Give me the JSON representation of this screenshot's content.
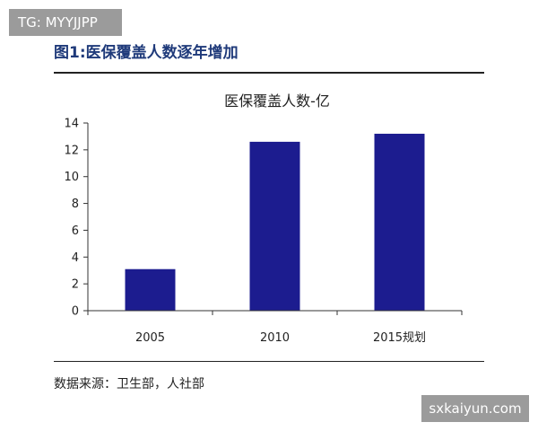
{
  "watermarks": {
    "top_left": "TG: MYYJJPP",
    "bottom_right": "sxkaiyun.com"
  },
  "figure_title": "图1:医保覆盖人数逐年增加",
  "source_note": "数据来源：卫生部，人社部",
  "colors": {
    "bar": "#1c1c8f",
    "axis": "#333333",
    "title": "#1f3a7a"
  },
  "chart_data": {
    "type": "bar",
    "title": "医保覆盖人数-亿",
    "categories": [
      "2005",
      "2010",
      "2015规划"
    ],
    "values": [
      3.1,
      12.6,
      13.2
    ],
    "xlabel": "",
    "ylabel": "",
    "ylim": [
      0,
      14
    ],
    "yticks": [
      0,
      2,
      4,
      6,
      8,
      10,
      12,
      14
    ],
    "grid": false,
    "legend": "none"
  }
}
